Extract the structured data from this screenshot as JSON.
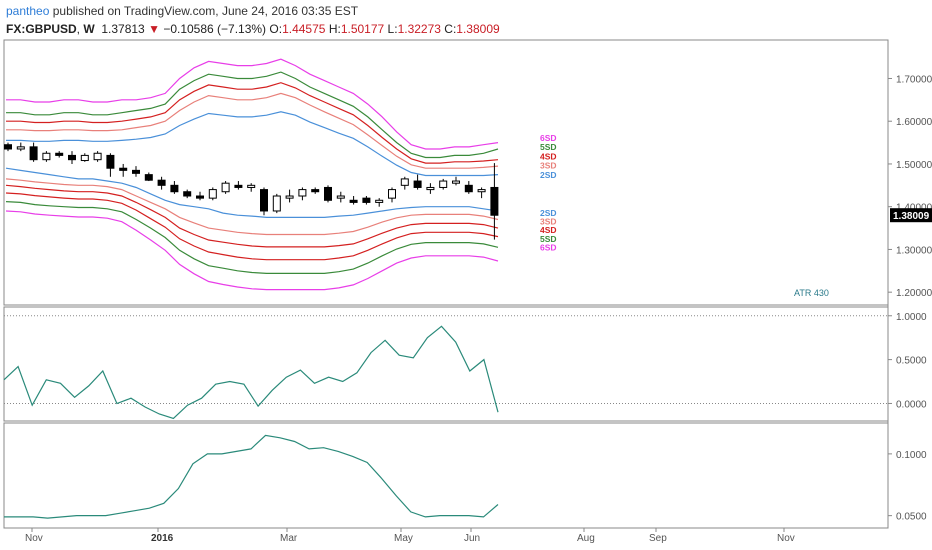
{
  "header": {
    "publisher": "pantheo",
    "published_text": "published on TradingView.com, June 24, 2016 03:35 EST",
    "symbol": "FX:GBPUSD",
    "interval": "W",
    "last": "1.37813",
    "change": "−0.10586 (−7.13%)",
    "open_label": "O:",
    "open": "1.44575",
    "high_label": "H:",
    "high": "1.50177",
    "low_label": "L:",
    "low": "1.32273",
    "close_label": "C:",
    "close": "1.38009"
  },
  "colors": {
    "sd6": "#e83ee8",
    "sd5": "#3a8a3a",
    "sd4": "#d42020",
    "sd3": "#e8807a",
    "sd2": "#4a90d9",
    "indicator": "#2a8a7a",
    "grid": "#cfcfcf"
  },
  "chart_data": [
    {
      "type": "candlestick",
      "price_axis_ticks": [
        "1.70000",
        "1.60000",
        "1.50000",
        "1.40000",
        "1.30000",
        "1.20000"
      ],
      "price_axis_values": [
        1.7,
        1.6,
        1.5,
        1.4,
        1.3,
        1.2
      ],
      "last_price_label": "1.38009",
      "x_tick_labels": [
        "Nov",
        "2016",
        "Mar",
        "May",
        "Jun",
        "Aug",
        "Sep",
        "Nov"
      ],
      "upper_band_labels": [
        "6SD",
        "5SD",
        "4SD",
        "3SD",
        "2SD"
      ],
      "lower_band_labels": [
        "2SD",
        "3SD",
        "4SD",
        "5SD",
        "6SD"
      ],
      "annotation": "ATR 430",
      "candles": [
        [
          1.545,
          1.55,
          1.53,
          1.535
        ],
        [
          1.535,
          1.55,
          1.53,
          1.54
        ],
        [
          1.54,
          1.55,
          1.505,
          1.51
        ],
        [
          1.51,
          1.53,
          1.505,
          1.525
        ],
        [
          1.525,
          1.53,
          1.515,
          1.52
        ],
        [
          1.52,
          1.53,
          1.5,
          1.51
        ],
        [
          1.508,
          1.525,
          1.505,
          1.52
        ],
        [
          1.51,
          1.53,
          1.505,
          1.525
        ],
        [
          1.52,
          1.525,
          1.47,
          1.49
        ],
        [
          1.49,
          1.5,
          1.47,
          1.485
        ],
        [
          1.485,
          1.495,
          1.47,
          1.478
        ],
        [
          1.475,
          1.48,
          1.46,
          1.462
        ],
        [
          1.462,
          1.47,
          1.44,
          1.45
        ],
        [
          1.45,
          1.46,
          1.43,
          1.435
        ],
        [
          1.435,
          1.44,
          1.42,
          1.425
        ],
        [
          1.425,
          1.435,
          1.415,
          1.42
        ],
        [
          1.42,
          1.445,
          1.415,
          1.44
        ],
        [
          1.435,
          1.46,
          1.43,
          1.455
        ],
        [
          1.45,
          1.46,
          1.44,
          1.445
        ],
        [
          1.445,
          1.455,
          1.435,
          1.45
        ],
        [
          1.44,
          1.445,
          1.38,
          1.39
        ],
        [
          1.39,
          1.43,
          1.385,
          1.425
        ],
        [
          1.42,
          1.44,
          1.41,
          1.425
        ],
        [
          1.425,
          1.445,
          1.415,
          1.44
        ],
        [
          1.44,
          1.445,
          1.43,
          1.435
        ],
        [
          1.445,
          1.45,
          1.41,
          1.415
        ],
        [
          1.42,
          1.435,
          1.41,
          1.425
        ],
        [
          1.415,
          1.425,
          1.405,
          1.41
        ],
        [
          1.42,
          1.425,
          1.405,
          1.41
        ],
        [
          1.41,
          1.42,
          1.4,
          1.415
        ],
        [
          1.42,
          1.445,
          1.41,
          1.44
        ],
        [
          1.45,
          1.47,
          1.44,
          1.465
        ],
        [
          1.46,
          1.475,
          1.44,
          1.445
        ],
        [
          1.44,
          1.455,
          1.43,
          1.445
        ],
        [
          1.445,
          1.465,
          1.44,
          1.46
        ],
        [
          1.455,
          1.47,
          1.45,
          1.46
        ],
        [
          1.45,
          1.46,
          1.43,
          1.435
        ],
        [
          1.435,
          1.445,
          1.42,
          1.44
        ],
        [
          1.445,
          1.502,
          1.323,
          1.38
        ]
      ],
      "bands": {
        "upper6": [
          1.65,
          1.65,
          1.645,
          1.645,
          1.65,
          1.65,
          1.645,
          1.645,
          1.65,
          1.65,
          1.655,
          1.665,
          1.7,
          1.725,
          1.74,
          1.735,
          1.73,
          1.73,
          1.735,
          1.745,
          1.73,
          1.71,
          1.695,
          1.68,
          1.665,
          1.64,
          1.61,
          1.575,
          1.545,
          1.535,
          1.535,
          1.54,
          1.54,
          1.545,
          1.55
        ],
        "upper5": [
          1.62,
          1.62,
          1.615,
          1.615,
          1.62,
          1.62,
          1.615,
          1.615,
          1.62,
          1.625,
          1.63,
          1.64,
          1.675,
          1.695,
          1.71,
          1.705,
          1.7,
          1.7,
          1.705,
          1.715,
          1.7,
          1.68,
          1.665,
          1.65,
          1.635,
          1.61,
          1.58,
          1.55,
          1.525,
          1.515,
          1.515,
          1.52,
          1.52,
          1.525,
          1.535
        ],
        "upper4": [
          1.6,
          1.6,
          1.597,
          1.597,
          1.6,
          1.6,
          1.597,
          1.597,
          1.6,
          1.605,
          1.61,
          1.62,
          1.65,
          1.67,
          1.685,
          1.68,
          1.675,
          1.675,
          1.68,
          1.69,
          1.678,
          1.66,
          1.645,
          1.63,
          1.615,
          1.59,
          1.562,
          1.535,
          1.512,
          1.502,
          1.502,
          1.505,
          1.505,
          1.507,
          1.51
        ],
        "upper3": [
          1.58,
          1.58,
          1.578,
          1.578,
          1.58,
          1.58,
          1.578,
          1.578,
          1.58,
          1.585,
          1.59,
          1.6,
          1.625,
          1.645,
          1.66,
          1.655,
          1.65,
          1.65,
          1.655,
          1.665,
          1.655,
          1.638,
          1.622,
          1.607,
          1.592,
          1.568,
          1.543,
          1.518,
          1.498,
          1.49,
          1.49,
          1.49,
          1.49,
          1.492,
          1.495
        ],
        "upper2": [
          1.555,
          1.555,
          1.553,
          1.553,
          1.555,
          1.555,
          1.553,
          1.553,
          1.555,
          1.558,
          1.562,
          1.57,
          1.59,
          1.605,
          1.618,
          1.614,
          1.61,
          1.61,
          1.614,
          1.622,
          1.614,
          1.598,
          1.585,
          1.572,
          1.56,
          1.54,
          1.518,
          1.497,
          1.48,
          1.473,
          1.473,
          1.473,
          1.473,
          1.473,
          1.475
        ],
        "mid": [
          1.49,
          1.485,
          1.48,
          1.475,
          1.47,
          1.465,
          1.465,
          1.46,
          1.455,
          1.445,
          1.43,
          1.415,
          1.405,
          1.4,
          1.395,
          1.385,
          1.38,
          1.378,
          1.375,
          1.375,
          1.375,
          1.375,
          1.375,
          1.378,
          1.38,
          1.385,
          1.39,
          1.395,
          1.398,
          1.4,
          1.4,
          1.4,
          1.4,
          1.395,
          1.39
        ],
        "lower2": [
          1.465,
          1.462,
          1.458,
          1.455,
          1.452,
          1.45,
          1.45,
          1.447,
          1.44,
          1.425,
          1.41,
          1.395,
          1.375,
          1.362,
          1.35,
          1.345,
          1.34,
          1.337,
          1.335,
          1.335,
          1.335,
          1.335,
          1.335,
          1.338,
          1.342,
          1.352,
          1.364,
          1.374,
          1.38,
          1.382,
          1.382,
          1.382,
          1.382,
          1.378,
          1.37
        ],
        "lower3": [
          1.45,
          1.447,
          1.443,
          1.44,
          1.437,
          1.435,
          1.435,
          1.432,
          1.425,
          1.41,
          1.393,
          1.375,
          1.35,
          1.335,
          1.322,
          1.317,
          1.312,
          1.308,
          1.306,
          1.306,
          1.306,
          1.306,
          1.306,
          1.309,
          1.313,
          1.325,
          1.338,
          1.35,
          1.358,
          1.361,
          1.361,
          1.361,
          1.361,
          1.358,
          1.35
        ],
        "lower4": [
          1.432,
          1.43,
          1.426,
          1.423,
          1.42,
          1.418,
          1.418,
          1.415,
          1.408,
          1.392,
          1.372,
          1.352,
          1.325,
          1.308,
          1.294,
          1.288,
          1.282,
          1.278,
          1.276,
          1.276,
          1.276,
          1.276,
          1.276,
          1.28,
          1.285,
          1.298,
          1.313,
          1.327,
          1.337,
          1.34,
          1.34,
          1.34,
          1.34,
          1.337,
          1.33
        ],
        "lower5": [
          1.412,
          1.41,
          1.405,
          1.402,
          1.4,
          1.398,
          1.398,
          1.395,
          1.388,
          1.37,
          1.35,
          1.328,
          1.298,
          1.278,
          1.262,
          1.256,
          1.25,
          1.246,
          1.244,
          1.244,
          1.244,
          1.244,
          1.244,
          1.248,
          1.254,
          1.268,
          1.285,
          1.301,
          1.312,
          1.316,
          1.316,
          1.316,
          1.316,
          1.313,
          1.305
        ],
        "lower6": [
          1.39,
          1.388,
          1.383,
          1.38,
          1.378,
          1.376,
          1.376,
          1.373,
          1.365,
          1.345,
          1.322,
          1.298,
          1.265,
          1.243,
          1.225,
          1.218,
          1.212,
          1.208,
          1.206,
          1.206,
          1.206,
          1.206,
          1.206,
          1.21,
          1.217,
          1.232,
          1.25,
          1.268,
          1.28,
          1.285,
          1.285,
          1.285,
          1.285,
          1.282,
          1.273
        ]
      }
    },
    {
      "type": "line",
      "y_axis_ticks": [
        "1.0000",
        "0.5000",
        "0.0000"
      ],
      "y_axis_values": [
        1.0,
        0.5,
        0.0
      ],
      "values": [
        0.27,
        0.42,
        -0.02,
        0.27,
        0.23,
        0.07,
        0.2,
        0.37,
        0.0,
        0.06,
        -0.04,
        -0.12,
        -0.17,
        -0.02,
        0.06,
        0.22,
        0.25,
        0.22,
        -0.03,
        0.15,
        0.3,
        0.38,
        0.23,
        0.3,
        0.25,
        0.35,
        0.58,
        0.72,
        0.55,
        0.52,
        0.75,
        0.88,
        0.7,
        0.37,
        0.5,
        -0.1
      ]
    },
    {
      "type": "line",
      "y_axis_ticks": [
        "0.1000",
        "0.0500"
      ],
      "y_axis_values": [
        0.1,
        0.05
      ],
      "values": [
        0.049,
        0.049,
        0.049,
        0.048,
        0.049,
        0.05,
        0.05,
        0.05,
        0.052,
        0.054,
        0.056,
        0.06,
        0.072,
        0.092,
        0.1,
        0.1,
        0.102,
        0.104,
        0.115,
        0.113,
        0.11,
        0.104,
        0.105,
        0.102,
        0.098,
        0.093,
        0.08,
        0.066,
        0.053,
        0.049,
        0.05,
        0.05,
        0.05,
        0.049,
        0.059
      ]
    }
  ]
}
